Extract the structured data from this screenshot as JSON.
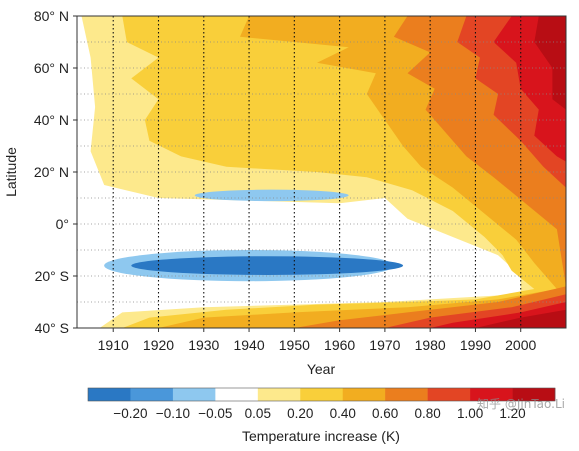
{
  "chart_data": {
    "type": "heatmap",
    "title": "",
    "xlabel": "Year",
    "ylabel": "Latitude",
    "xlim": [
      1902,
      2010
    ],
    "ylim": [
      -40,
      80
    ],
    "x_ticks": [
      1910,
      1920,
      1930,
      1940,
      1950,
      1960,
      1970,
      1980,
      1990,
      2000
    ],
    "y_ticks": [
      {
        "value": 80,
        "label": "80° N"
      },
      {
        "value": 60,
        "label": "60° N"
      },
      {
        "value": 40,
        "label": "40° N"
      },
      {
        "value": 20,
        "label": "20° N"
      },
      {
        "value": 0,
        "label": "0°"
      },
      {
        "value": -20,
        "label": "20° S"
      },
      {
        "value": -40,
        "label": "40° S"
      }
    ],
    "grid": true,
    "colorbar": {
      "label": "Temperature increase (K)",
      "tick_labels": [
        "−0.20",
        "−0.10",
        "−0.05",
        "0.05",
        "0.20",
        "0.40",
        "0.60",
        "0.80",
        "1.00",
        "1.20"
      ],
      "colors": [
        "#2a78c4",
        "#4a97da",
        "#8ec8ef",
        "#ffffff",
        "#fde98c",
        "#f9cf3a",
        "#f2ad20",
        "#eb7e1e",
        "#e34524",
        "#d8141c",
        "#b80d14"
      ]
    },
    "contours": [
      {
        "level": 0.05,
        "color": "#fde98c",
        "left": [
          [
            1903,
            80
          ],
          [
            1905,
            64
          ],
          [
            1906,
            45
          ],
          [
            1905,
            28
          ],
          [
            1908,
            15
          ],
          [
            1920,
            10
          ],
          [
            1940,
            9
          ],
          [
            1960,
            8
          ],
          [
            1970,
            10
          ],
          [
            1975,
            2
          ],
          [
            1985,
            -5
          ],
          [
            1995,
            -12
          ],
          [
            2000,
            -20
          ],
          [
            2000,
            -27
          ],
          [
            1990,
            -28
          ],
          [
            1970,
            -30
          ],
          [
            1950,
            -31
          ],
          [
            1930,
            -32
          ],
          [
            1912,
            -34
          ],
          [
            1907,
            -40
          ]
        ]
      },
      {
        "level": 0.2,
        "color": "#f9cf3a",
        "left": [
          [
            1912,
            80
          ],
          [
            1913,
            70
          ],
          [
            1920,
            64
          ],
          [
            1914,
            56
          ],
          [
            1920,
            48
          ],
          [
            1917,
            40
          ],
          [
            1918,
            32
          ],
          [
            1925,
            26
          ],
          [
            1935,
            22
          ],
          [
            1955,
            20
          ],
          [
            1966,
            18
          ],
          [
            1976,
            13
          ],
          [
            1985,
            5
          ],
          [
            1992,
            -5
          ],
          [
            1996,
            -12
          ],
          [
            1998,
            -18
          ],
          [
            2003,
            -25
          ],
          [
            1990,
            -29
          ],
          [
            1975,
            -30
          ],
          [
            1955,
            -31
          ],
          [
            1935,
            -33
          ],
          [
            1918,
            -36
          ],
          [
            1912,
            -40
          ]
        ]
      },
      {
        "level": 0.4,
        "color": "#f2ad20",
        "left": [
          [
            1940,
            80
          ],
          [
            1938,
            72
          ],
          [
            1962,
            68
          ],
          [
            1955,
            62
          ],
          [
            1968,
            58
          ],
          [
            1966,
            50
          ],
          [
            1970,
            40
          ],
          [
            1974,
            30
          ],
          [
            1978,
            22
          ],
          [
            1985,
            14
          ],
          [
            1992,
            4
          ],
          [
            1999,
            -6
          ],
          [
            2003,
            -15
          ],
          [
            2008,
            -25
          ],
          [
            1995,
            -29
          ],
          [
            1975,
            -32
          ],
          [
            1950,
            -34
          ],
          [
            1930,
            -36
          ],
          [
            1920,
            -40
          ]
        ]
      },
      {
        "level": 0.6,
        "color": "#eb7e1e",
        "left": [
          [
            1975,
            80
          ],
          [
            1972,
            72
          ],
          [
            1980,
            66
          ],
          [
            1975,
            58
          ],
          [
            1981,
            52
          ],
          [
            1979,
            44
          ],
          [
            1984,
            34
          ],
          [
            1988,
            26
          ],
          [
            1994,
            18
          ],
          [
            2001,
            8
          ],
          [
            2008,
            -2
          ],
          [
            2010,
            -24
          ],
          [
            1995,
            -30
          ],
          [
            1975,
            -34
          ],
          [
            1960,
            -37
          ],
          [
            1950,
            -40
          ]
        ]
      },
      {
        "level": 0.8,
        "color": "#e34524",
        "left": [
          [
            1988,
            80
          ],
          [
            1986,
            70
          ],
          [
            1991,
            64
          ],
          [
            1990,
            56
          ],
          [
            1995,
            50
          ],
          [
            1994,
            42
          ],
          [
            2000,
            32
          ],
          [
            2005,
            22
          ],
          [
            2010,
            14
          ],
          [
            2010,
            -27
          ],
          [
            1998,
            -32
          ],
          [
            1980,
            -36
          ],
          [
            1970,
            -40
          ]
        ]
      },
      {
        "level": 1.0,
        "color": "#d8141c",
        "left": [
          [
            1998,
            80
          ],
          [
            1994,
            70
          ],
          [
            1999,
            62
          ],
          [
            2000,
            52
          ],
          [
            2004,
            44
          ],
          [
            2003,
            34
          ],
          [
            2008,
            26
          ],
          [
            2010,
            24
          ],
          [
            2010,
            -30
          ],
          [
            2000,
            -34
          ],
          [
            1985,
            -38
          ],
          [
            1980,
            -40
          ]
        ]
      },
      {
        "level": 1.2,
        "color": "#b80d14",
        "left": [
          [
            2004,
            80
          ],
          [
            2003,
            70
          ],
          [
            2007,
            60
          ],
          [
            2007,
            48
          ],
          [
            2010,
            44
          ],
          [
            2010,
            -33
          ],
          [
            2000,
            -36
          ],
          [
            1990,
            -40
          ]
        ]
      }
    ],
    "ellipses": [
      {
        "level": -0.05,
        "color": "#8ec8ef",
        "cx": 1945,
        "cy": 11,
        "rx": 17,
        "ry": 2.2
      },
      {
        "level": -0.05,
        "color": "#8ec8ef",
        "cx": 1940,
        "cy": -16,
        "rx": 32,
        "ry": 6
      },
      {
        "level": -0.1,
        "color": "#2a78c4",
        "cx": 1944,
        "cy": -16,
        "rx": 30,
        "ry": 3.6
      }
    ]
  },
  "watermark": "知乎 @JinTao.Li"
}
